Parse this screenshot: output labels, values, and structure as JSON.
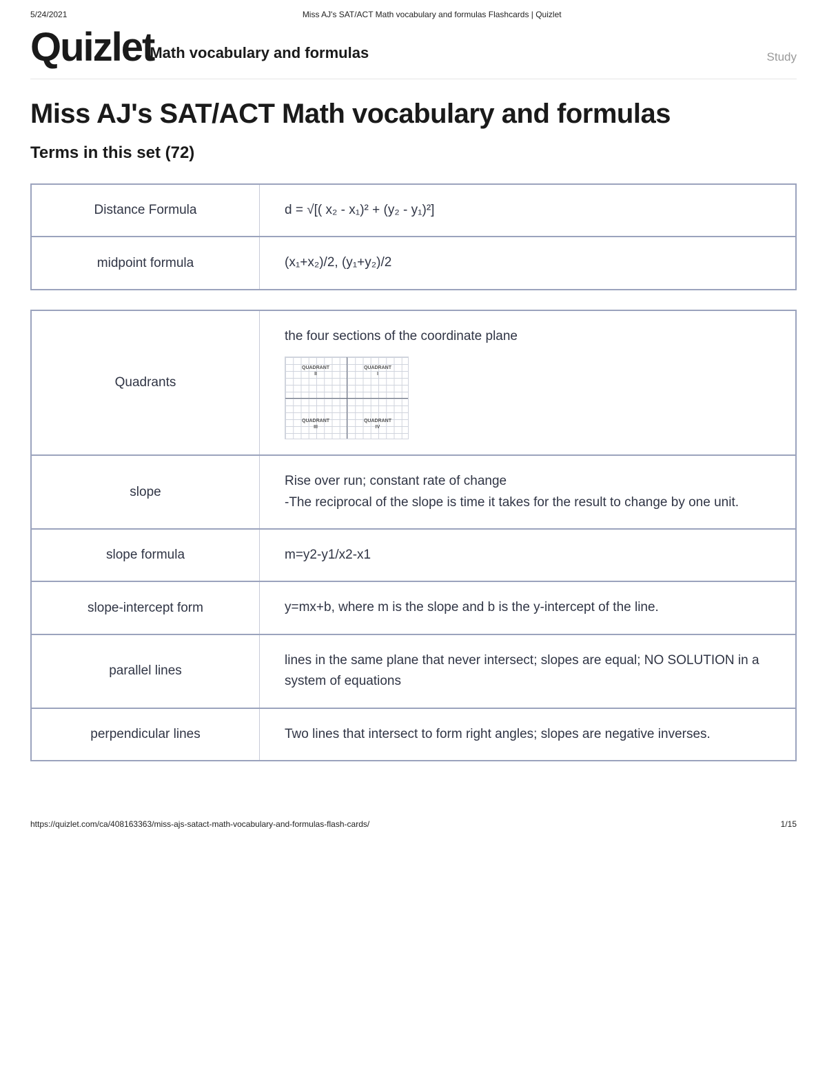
{
  "print": {
    "date": "5/24/2021",
    "title": "Miss AJ's SAT/ACT Math vocabulary and formulas Flashcards | Quizlet",
    "url": "https://quizlet.com/ca/408163363/miss-ajs-satact-math-vocabulary-and-formulas-flash-cards/",
    "page": "1/15"
  },
  "logo": "Quizlet",
  "header_overlay": "Math vocabulary and formulas",
  "study_link": "Study",
  "page_title": "Miss AJ's SAT/ACT Math vocabulary and formulas",
  "terms_heading": "Terms in this set (72)",
  "groups": [
    {
      "cards": [
        {
          "term": "Distance Formula",
          "def": "d = √[( x₂ - x₁)² + (y₂ - y₁)²]"
        },
        {
          "term": "midpoint formula",
          "def": "(x₁+x₂)/2, (y₁+y₂)/2"
        }
      ]
    },
    {
      "cards": [
        {
          "term": "Quadrants",
          "def": "the four sections of the coordinate plane",
          "has_diagram": true
        },
        {
          "term": "slope",
          "def": "Rise over run; constant rate of change\n-The reciprocal of the slope is time it takes for the result to change by one unit."
        },
        {
          "term": "slope formula",
          "def": "m=y2-y1/x2-x1"
        },
        {
          "term": "slope-intercept form",
          "def": "y=mx+b, where m is the slope and b is the y-intercept of the line."
        },
        {
          "term": "parallel lines",
          "def": "lines in the same plane that never intersect; slopes are equal; NO SOLUTION in a system of equations"
        },
        {
          "term": "perpendicular lines",
          "def": "Two lines that intersect to form right angles; slopes are negative inverses."
        }
      ]
    }
  ],
  "quadrant_labels": {
    "q1": "QUADRANT\nI",
    "q2": "QUADRANT\nII",
    "q3": "QUADRANT\nIII",
    "q4": "QUADRANT\nIV"
  }
}
